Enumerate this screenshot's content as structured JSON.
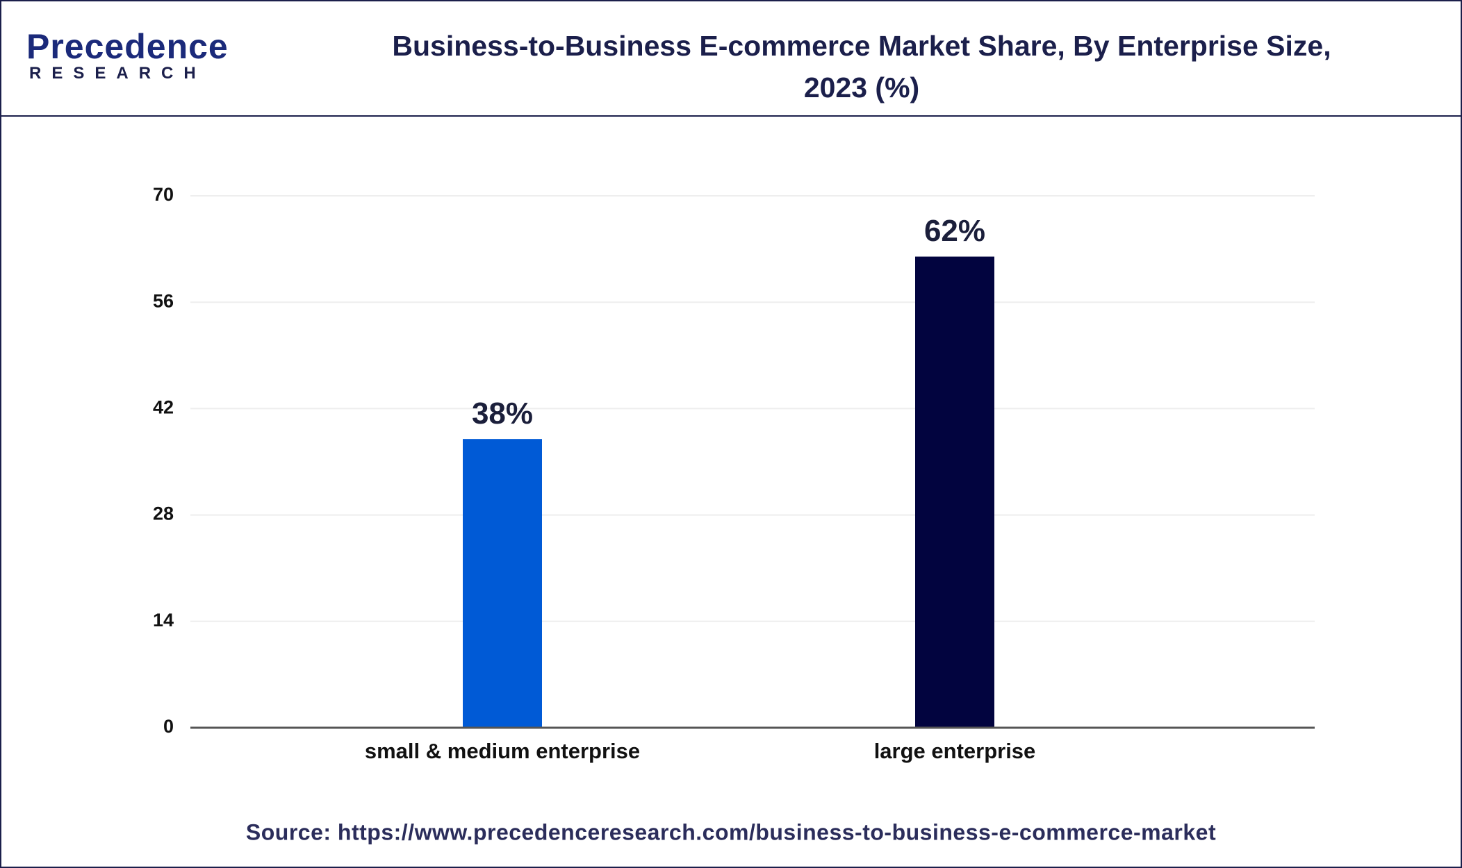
{
  "chart_data": {
    "type": "bar",
    "title": "Business-to-Business E-commerce Market Share, By Enterprise Size, 2023 (%)",
    "logo": {
      "name": "Precedence",
      "sub": "RESEARCH"
    },
    "categories": [
      "small & medium enterprise",
      "large enterprise"
    ],
    "values": [
      38,
      62
    ],
    "value_labels": [
      "38%",
      "62%"
    ],
    "colors": [
      "#005ad6",
      "#02043f"
    ],
    "ylim": [
      0,
      70
    ],
    "yticks": [
      0,
      14,
      28,
      42,
      56,
      70
    ],
    "grid": true,
    "source": "Source: https://www.precedenceresearch.com/business-to-business-e-commerce-market"
  }
}
